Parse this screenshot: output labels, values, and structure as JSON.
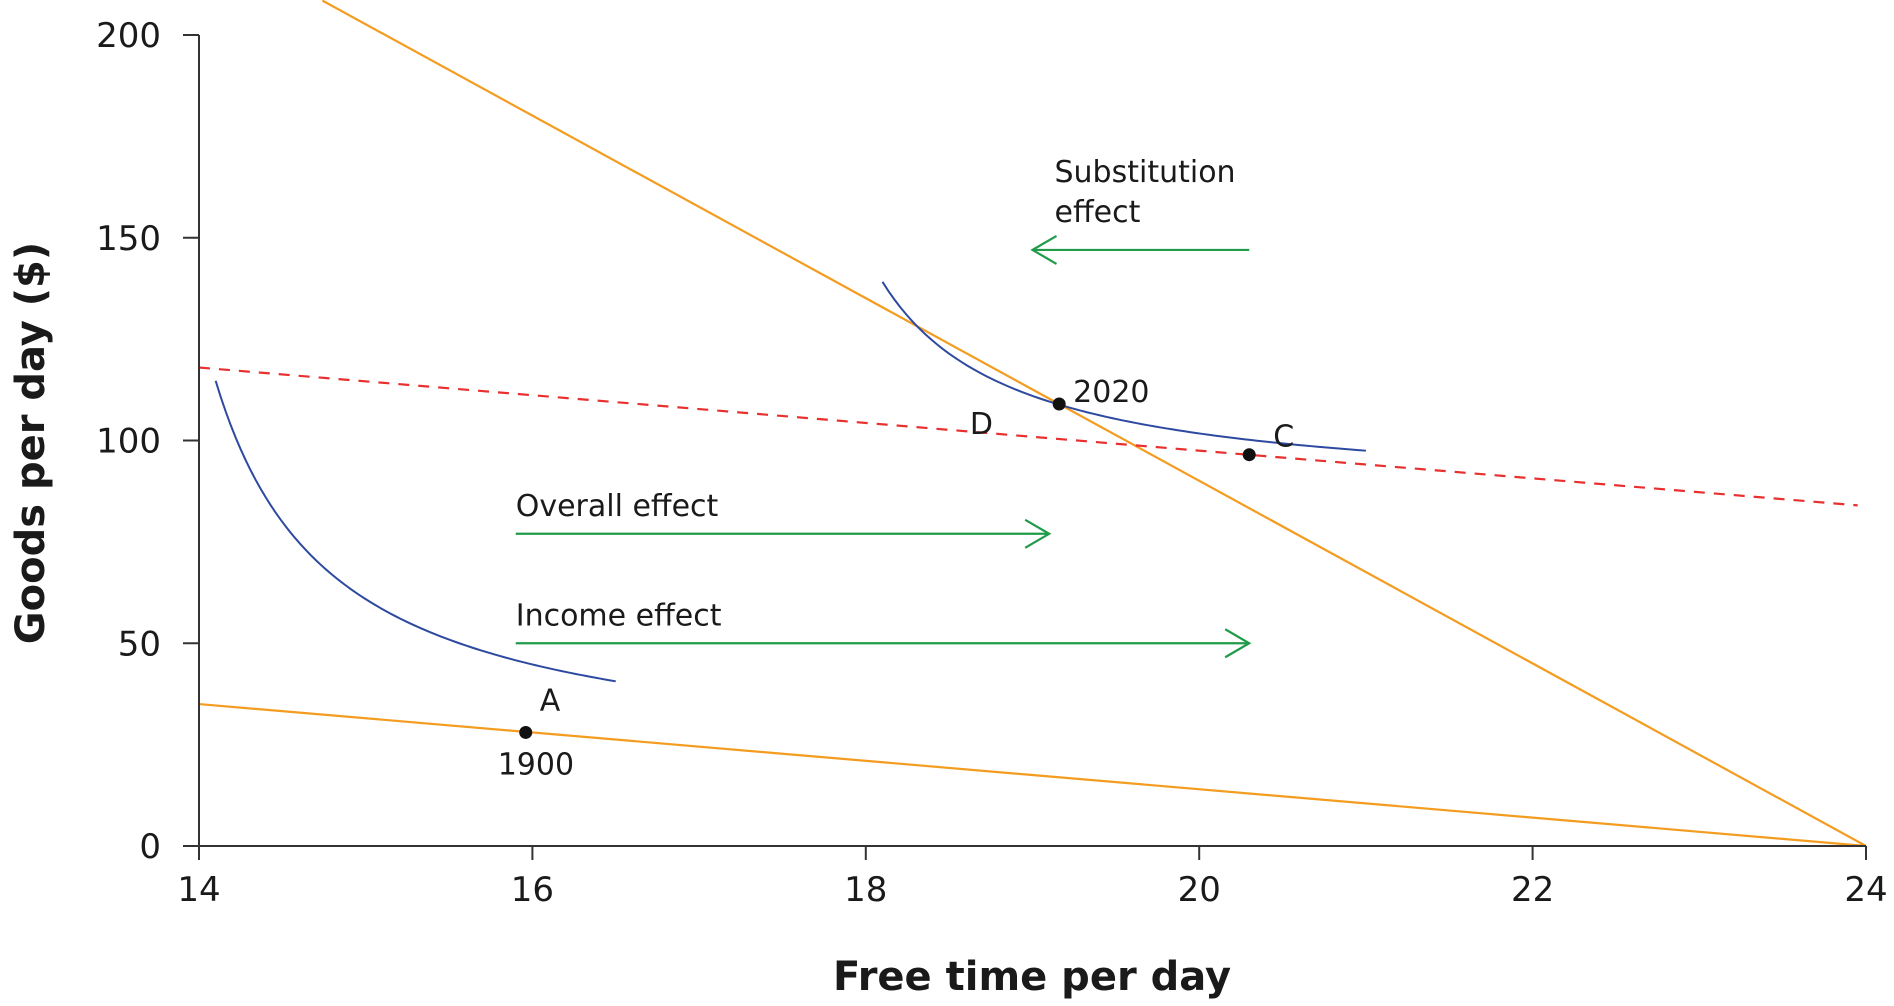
{
  "chart_data": {
    "type": "line",
    "xlabel": "Free time per day",
    "ylabel": "Goods per day ($)",
    "xlim": [
      14,
      24
    ],
    "ylim": [
      0,
      200
    ],
    "xticks": [
      14,
      16,
      18,
      20,
      22,
      24
    ],
    "yticks": [
      0,
      50,
      100,
      150,
      200
    ],
    "grid": false,
    "colors": {
      "budget_line": "#f39c1f",
      "dashed_line": "#e8302f",
      "indifference_curve": "#2e4aa0",
      "arrow": "#1f9b4a",
      "point": "#111111"
    },
    "budget_lines": [
      {
        "id": "budget-1900",
        "style": "solid",
        "x": [
          14,
          24
        ],
        "y": [
          35,
          0
        ]
      },
      {
        "id": "budget-2020",
        "style": "solid",
        "x": [
          14.74,
          24
        ],
        "y": [
          208.5,
          0
        ]
      },
      {
        "id": "budget-dashed",
        "style": "dashed",
        "x": [
          14,
          23.95
        ],
        "y": [
          118,
          84
        ]
      }
    ],
    "indifference_curves": [
      {
        "id": "ic-1900",
        "x0": 14.1,
        "x1": 16.5,
        "xa": 13.4,
        "ya": 19,
        "k": 67
      },
      {
        "id": "ic-2020",
        "x0": 18.1,
        "x1": 21.0,
        "xa": 17.3,
        "ya": 86,
        "k": 42.5
      }
    ],
    "points": [
      {
        "id": "A",
        "label": "A",
        "year": "1900",
        "x": 15.96,
        "y": 28
      },
      {
        "id": "2020",
        "label": "",
        "year": "2020",
        "x": 19.16,
        "y": 109
      },
      {
        "id": "C",
        "label": "C",
        "year": "",
        "x": 20.3,
        "y": 96.5
      },
      {
        "id": "D",
        "label": "D",
        "year": "",
        "x": 18.9,
        "y": 105
      }
    ],
    "arrows": [
      {
        "id": "overall-effect",
        "lines": [
          "Overall effect"
        ],
        "x_from": 15.9,
        "x_to": 19.1,
        "y": 77
      },
      {
        "id": "income-effect",
        "lines": [
          "Income effect"
        ],
        "x_from": 15.9,
        "x_to": 20.3,
        "y": 50
      },
      {
        "id": "substitution-effect",
        "lines": [
          "Substitution",
          "effect"
        ],
        "x_from": 20.3,
        "x_to": 19.0,
        "y": 147
      }
    ]
  }
}
